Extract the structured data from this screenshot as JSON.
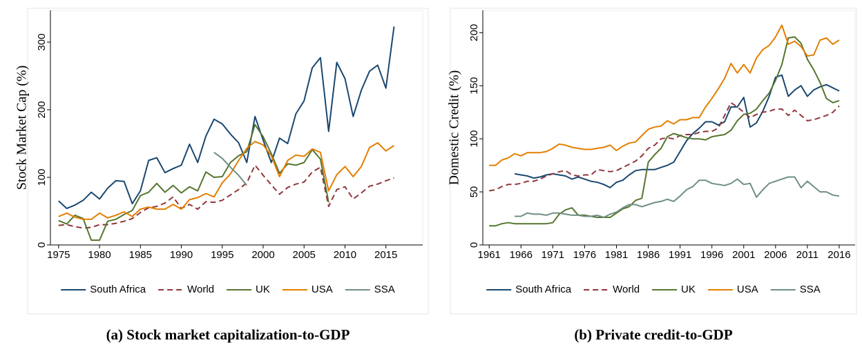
{
  "chart_data": [
    {
      "type": "line",
      "caption": "(a) Stock market capitalization-to-GDP",
      "y_label": "Stock Market Cap (%)",
      "x": [
        1975,
        1976,
        1977,
        1978,
        1979,
        1980,
        1981,
        1982,
        1983,
        1984,
        1985,
        1986,
        1987,
        1988,
        1989,
        1990,
        1991,
        1992,
        1993,
        1994,
        1995,
        1996,
        1997,
        1998,
        1999,
        2000,
        2001,
        2002,
        2003,
        2004,
        2005,
        2006,
        2007,
        2008,
        2009,
        2010,
        2011,
        2012,
        2013,
        2014,
        2015,
        2016
      ],
      "xlim": [
        1974,
        2019.5
      ],
      "xticks": [
        1975,
        1980,
        1985,
        1990,
        1995,
        2000,
        2005,
        2010,
        2015
      ],
      "ylim": [
        0,
        347
      ],
      "yticks": [
        0,
        100,
        200,
        300
      ],
      "legend": "bottom",
      "series": [
        {
          "name": "South Africa",
          "color": "#1a476f",
          "line_style": "solid",
          "values": [
            65,
            54,
            59,
            66,
            78,
            68,
            84,
            95,
            94,
            61,
            80,
            125,
            129,
            107,
            113,
            118,
            149,
            122,
            161,
            186,
            179,
            164,
            151,
            122,
            190,
            155,
            122,
            158,
            150,
            194,
            213,
            262,
            277,
            168,
            270,
            246,
            190,
            229,
            257,
            266,
            232,
            323
          ]
        },
        {
          "name": "World",
          "color": "#90353b",
          "line_style": "dashed",
          "values": [
            29,
            30,
            27,
            25,
            26,
            30,
            30,
            32,
            35,
            39,
            48,
            55,
            57,
            62,
            71,
            54,
            60,
            53,
            64,
            63,
            66,
            74,
            82,
            92,
            118,
            103,
            89,
            75,
            85,
            90,
            93,
            108,
            115,
            57,
            82,
            86,
            68,
            77,
            87,
            90,
            95,
            99
          ]
        },
        {
          "name": "UK",
          "color": "#55752f",
          "line_style": "solid",
          "values": [
            36,
            31,
            44,
            39,
            7,
            7,
            35,
            38,
            45,
            51,
            73,
            78,
            91,
            78,
            88,
            77,
            86,
            80,
            108,
            100,
            101,
            122,
            132,
            138,
            178,
            160,
            135,
            106,
            120,
            118,
            122,
            141,
            127,
            63,
            null,
            null,
            null,
            null,
            null,
            null,
            null,
            null
          ]
        },
        {
          "name": "USA",
          "color": "#e37e00",
          "line_style": "solid",
          "values": [
            42,
            47,
            41,
            38,
            38,
            47,
            40,
            44,
            49,
            42,
            53,
            56,
            53,
            53,
            60,
            53,
            67,
            70,
            76,
            71,
            92,
            105,
            125,
            143,
            153,
            148,
            132,
            101,
            125,
            133,
            131,
            142,
            137,
            80,
            104,
            116,
            101,
            116,
            144,
            151,
            139,
            147
          ]
        },
        {
          "name": "SSA",
          "color": "#6e8e84",
          "line_style": "solid",
          "values": [
            null,
            null,
            null,
            null,
            null,
            null,
            null,
            null,
            null,
            null,
            null,
            null,
            null,
            null,
            null,
            null,
            null,
            null,
            null,
            137,
            128,
            115,
            103,
            88,
            null,
            null,
            null,
            null,
            null,
            null,
            null,
            null,
            null,
            null,
            null,
            null,
            null,
            null,
            null,
            null,
            null,
            null
          ]
        }
      ]
    },
    {
      "type": "line",
      "caption": "(b) Private credit-to-GDP",
      "y_label": "Domestic Credit (%)",
      "x": [
        1961,
        1962,
        1963,
        1964,
        1965,
        1966,
        1967,
        1968,
        1969,
        1970,
        1971,
        1972,
        1973,
        1974,
        1975,
        1976,
        1977,
        1978,
        1979,
        1980,
        1981,
        1982,
        1983,
        1984,
        1985,
        1986,
        1987,
        1988,
        1989,
        1990,
        1991,
        1992,
        1993,
        1994,
        1995,
        1996,
        1997,
        1998,
        1999,
        2000,
        2001,
        2002,
        2003,
        2004,
        2005,
        2006,
        2007,
        2008,
        2009,
        2010,
        2011,
        2012,
        2013,
        2014,
        2015,
        2016
      ],
      "xlim": [
        1960,
        2018.5
      ],
      "xticks": [
        1961,
        1966,
        1971,
        1976,
        1981,
        1986,
        1991,
        1996,
        2001,
        2006,
        2011,
        2016
      ],
      "ylim": [
        0,
        221
      ],
      "yticks": [
        0,
        50,
        100,
        150,
        200
      ],
      "legend": "bottom",
      "series": [
        {
          "name": "South Africa",
          "color": "#1a476f",
          "line_style": "solid",
          "values": [
            null,
            null,
            null,
            null,
            67,
            66,
            65,
            63,
            64,
            66,
            67,
            66,
            65,
            62,
            64,
            62,
            60,
            59,
            57,
            54,
            59,
            61,
            66,
            70,
            71,
            71,
            71,
            73,
            75,
            78,
            88,
            98,
            105,
            110,
            116,
            116,
            113,
            116,
            130,
            130,
            139,
            111,
            115,
            126,
            140,
            158,
            160,
            140,
            146,
            150,
            140,
            146,
            149,
            151,
            148,
            145
          ]
        },
        {
          "name": "World",
          "color": "#90353b",
          "line_style": "dashed",
          "values": [
            51,
            52,
            55,
            57,
            57,
            58,
            60,
            60,
            62,
            65,
            67,
            69,
            70,
            66,
            65,
            66,
            66,
            71,
            70,
            69,
            70,
            73,
            76,
            79,
            84,
            91,
            94,
            100,
            101,
            100,
            103,
            104,
            104,
            106,
            107,
            107,
            110,
            122,
            134,
            130,
            125,
            120,
            123,
            125,
            126,
            128,
            128,
            122,
            127,
            122,
            117,
            118,
            120,
            122,
            125,
            131
          ]
        },
        {
          "name": "UK",
          "color": "#55752f",
          "line_style": "solid",
          "values": [
            18,
            18,
            20,
            21,
            20,
            20,
            20,
            20,
            20,
            20,
            21,
            29,
            33,
            35,
            28,
            28,
            27,
            26,
            26,
            26,
            30,
            34,
            36,
            42,
            44,
            78,
            85,
            91,
            102,
            105,
            103,
            101,
            100,
            100,
            99,
            102,
            103,
            104,
            108,
            117,
            123,
            124,
            128,
            136,
            143,
            155,
            170,
            195,
            196,
            190,
            175,
            165,
            153,
            138,
            134,
            136
          ]
        },
        {
          "name": "USA",
          "color": "#e37e00",
          "line_style": "solid",
          "values": [
            75,
            75,
            80,
            82,
            86,
            84,
            87,
            87,
            87,
            88,
            91,
            95,
            94,
            92,
            91,
            90,
            90,
            91,
            92,
            94,
            89,
            93,
            96,
            97,
            103,
            109,
            111,
            112,
            117,
            114,
            118,
            118,
            120,
            120,
            130,
            138,
            147,
            157,
            171,
            162,
            170,
            162,
            176,
            184,
            188,
            196,
            207,
            189,
            192,
            187,
            178,
            179,
            193,
            195,
            189,
            193
          ]
        },
        {
          "name": "SSA",
          "color": "#6e8e84",
          "line_style": "solid",
          "values": [
            null,
            null,
            null,
            null,
            27,
            27,
            30,
            29,
            29,
            28,
            30,
            30,
            29,
            28,
            28,
            27,
            27,
            28,
            26,
            29,
            31,
            35,
            38,
            38,
            36,
            38,
            40,
            41,
            43,
            41,
            46,
            52,
            55,
            61,
            61,
            58,
            57,
            56,
            58,
            62,
            57,
            58,
            45,
            52,
            58,
            60,
            62,
            64,
            64,
            54,
            60,
            55,
            50,
            50,
            47,
            46
          ]
        }
      ]
    }
  ]
}
